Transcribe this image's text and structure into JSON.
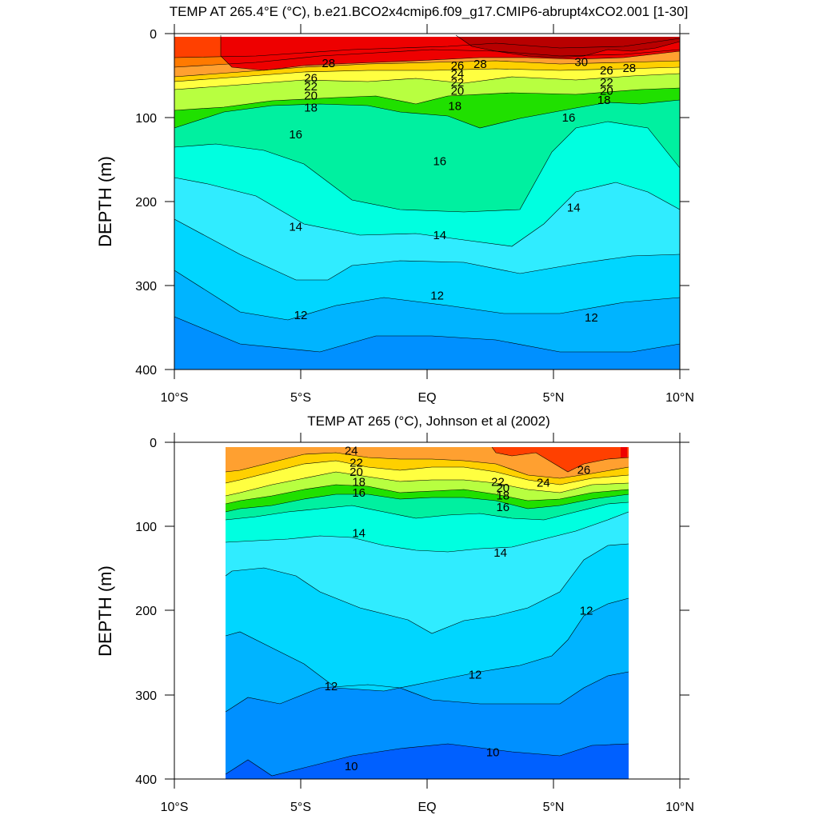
{
  "chart_data": [
    {
      "type": "contour",
      "title": "TEMP AT 265.4°E (°C), b.e21.BCO2x4cmip6.f09_g17.CMIP6-abrupt4xCO2.001 [1-30]",
      "ylabel": "DEPTH (m)",
      "xlabel": "",
      "x_ticks": [
        "10°S",
        "5°S",
        "EQ",
        "5°N",
        "10°N"
      ],
      "x_tick_values": [
        -10,
        -5,
        0,
        5,
        10
      ],
      "y_ticks": [
        "0",
        "100",
        "200",
        "300",
        "400"
      ],
      "y_tick_values": [
        0,
        100,
        200,
        300,
        400
      ],
      "xlim": [
        -10,
        10
      ],
      "ylim": [
        0,
        400
      ],
      "y_inverted": true,
      "data_extent_lat": [
        -10,
        10
      ],
      "data_extent_depth": [
        5,
        400
      ],
      "colors": {
        "above_30": "#b80000",
        "28_30": "#ee0000",
        "26_28": "#ff4000",
        "24_26": "#ff7a00",
        "22_24": "#ffa030",
        "20_22": "#ffd000",
        "18_20": "#ffff40",
        "17_18": "#b8ff40",
        "16_17": "#20e000",
        "15_16": "#00f0a0",
        "14_15": "#00ffe0",
        "13_14": "#30ecff",
        "12_13": "#00d6ff",
        "11_12": "#00b4ff",
        "10_11": "#0090ff",
        "below_10": "#0060ff"
      },
      "labels": [
        {
          "text": "28",
          "lat": -3.9,
          "depth": 35
        },
        {
          "text": "26",
          "lat": -4.6,
          "depth": 53
        },
        {
          "text": "22",
          "lat": -4.6,
          "depth": 63
        },
        {
          "text": "20",
          "lat": -4.6,
          "depth": 74
        },
        {
          "text": "18",
          "lat": -4.6,
          "depth": 88
        },
        {
          "text": "26",
          "lat": 1.2,
          "depth": 38
        },
        {
          "text": "28",
          "lat": 2.1,
          "depth": 36
        },
        {
          "text": "24",
          "lat": 1.2,
          "depth": 48
        },
        {
          "text": "22",
          "lat": 1.2,
          "depth": 58
        },
        {
          "text": "20",
          "lat": 1.2,
          "depth": 68
        },
        {
          "text": "18",
          "lat": 1.1,
          "depth": 86
        },
        {
          "text": "30",
          "lat": 6.1,
          "depth": 34
        },
        {
          "text": "28",
          "lat": 8.0,
          "depth": 41
        },
        {
          "text": "26",
          "lat": 7.1,
          "depth": 44
        },
        {
          "text": "22",
          "lat": 7.1,
          "depth": 58
        },
        {
          "text": "20",
          "lat": 7.1,
          "depth": 68
        },
        {
          "text": "18",
          "lat": 7.0,
          "depth": 79
        },
        {
          "text": "16",
          "lat": -5.2,
          "depth": 120
        },
        {
          "text": "16",
          "lat": 0.5,
          "depth": 152
        },
        {
          "text": "16",
          "lat": 5.6,
          "depth": 100
        },
        {
          "text": "14",
          "lat": -5.2,
          "depth": 230
        },
        {
          "text": "14",
          "lat": 0.5,
          "depth": 240
        },
        {
          "text": "14",
          "lat": 5.8,
          "depth": 207
        },
        {
          "text": "12",
          "lat": -5.0,
          "depth": 335
        },
        {
          "text": "12",
          "lat": 0.4,
          "depth": 312
        },
        {
          "text": "12",
          "lat": 6.5,
          "depth": 338
        }
      ]
    },
    {
      "type": "contour",
      "title": "TEMP AT 265 (°C), Johnson et al (2002)",
      "ylabel": "DEPTH (m)",
      "xlabel": "",
      "x_ticks": [
        "10°S",
        "5°S",
        "EQ",
        "5°N",
        "10°N"
      ],
      "x_tick_values": [
        -10,
        -5,
        0,
        5,
        10
      ],
      "y_ticks": [
        "0",
        "100",
        "200",
        "300",
        "400"
      ],
      "y_tick_values": [
        0,
        100,
        200,
        300,
        400
      ],
      "xlim": [
        -10,
        10
      ],
      "ylim": [
        0,
        400
      ],
      "y_inverted": true,
      "data_extent_lat": [
        -8,
        8
      ],
      "data_extent_depth": [
        5,
        400
      ],
      "labels": [
        {
          "text": "24",
          "lat": -3.0,
          "depth": 10
        },
        {
          "text": "22",
          "lat": -2.8,
          "depth": 24
        },
        {
          "text": "20",
          "lat": -2.8,
          "depth": 35
        },
        {
          "text": "18",
          "lat": -2.7,
          "depth": 47
        },
        {
          "text": "16",
          "lat": -2.7,
          "depth": 60
        },
        {
          "text": "22",
          "lat": 2.8,
          "depth": 47
        },
        {
          "text": "20",
          "lat": 3.0,
          "depth": 54
        },
        {
          "text": "18",
          "lat": 3.0,
          "depth": 63
        },
        {
          "text": "16",
          "lat": 3.0,
          "depth": 77
        },
        {
          "text": "24",
          "lat": 4.6,
          "depth": 48
        },
        {
          "text": "26",
          "lat": 6.2,
          "depth": 33
        },
        {
          "text": "14",
          "lat": -2.7,
          "depth": 108
        },
        {
          "text": "14",
          "lat": 2.9,
          "depth": 131
        },
        {
          "text": "12",
          "lat": 6.3,
          "depth": 200
        },
        {
          "text": "12",
          "lat": -3.8,
          "depth": 290
        },
        {
          "text": "12",
          "lat": 1.9,
          "depth": 276
        },
        {
          "text": "10",
          "lat": -3.0,
          "depth": 385
        },
        {
          "text": "10",
          "lat": 2.6,
          "depth": 368
        }
      ]
    }
  ]
}
